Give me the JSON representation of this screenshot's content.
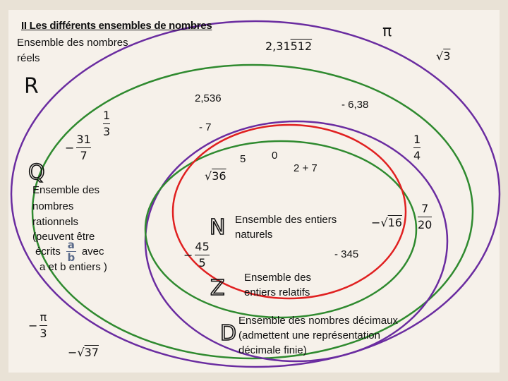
{
  "title": "II Les différents ensembles de nombres",
  "sets": {
    "R": {
      "letter": "R",
      "description_lines": [
        "Ensemble des nombres",
        "réels"
      ],
      "color": "#6a2ca0"
    },
    "Q": {
      "letter": "Q",
      "description_lines": [
        "Ensemble des",
        "nombres",
        "rationnels",
        "(peuvent être"
      ],
      "ecrits": "écrits",
      "avec": "avec",
      "frac_num": "a",
      "frac_den": "b",
      "last_line": "a et b entiers )",
      "color": "#2f8a2f"
    },
    "D": {
      "letter": "D",
      "description_lines": [
        "Ensemble des nombres décimaux",
        "(admettent une représentation",
        "décimale finie)"
      ],
      "color": "#6a2ca0"
    },
    "Z": {
      "letter": "Z",
      "description_lines": [
        "Ensemble des",
        "entiers relatifs"
      ],
      "color": "#2f8a2f"
    },
    "N": {
      "letter": "N",
      "description_lines": [
        "Ensemble des entiers",
        "naturels"
      ],
      "color": "#e02020"
    }
  },
  "numbers": {
    "pi": "π",
    "periodic_int": "2,31",
    "periodic_rep": "512",
    "sqrt3": "3",
    "dec_2536": "2,536",
    "neg_638": "- 6,38",
    "neg_7": "- 7",
    "one_third": {
      "num": "1",
      "den": "3"
    },
    "neg_31_7": {
      "sign": "−",
      "num": "31",
      "den": "7"
    },
    "one_quarter": {
      "num": "1",
      "den": "4"
    },
    "five": "5",
    "zero": "0",
    "two_plus_seven": "2 + 7",
    "sqrt36": "36",
    "neg_sqrt16": {
      "sign": "−",
      "rad": "16"
    },
    "seven_20": {
      "num": "7",
      "den": "20"
    },
    "neg_45_5": {
      "sign": "−",
      "num": "45",
      "den": "5"
    },
    "neg_345": "- 345",
    "neg_pi_3": {
      "sign": "−",
      "num": "π",
      "den": "3"
    },
    "neg_sqrt37": {
      "sign": "−",
      "rad": "37"
    },
    "sqrt_symbol": "√"
  }
}
